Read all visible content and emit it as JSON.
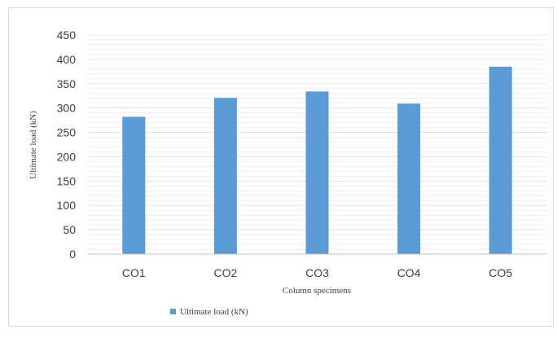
{
  "chart_data": {
    "type": "bar",
    "title": "",
    "xlabel": "Column specimens",
    "ylabel": "Ultimate load (kN)",
    "categories": [
      "CO1",
      "CO2",
      "CO3",
      "CO4",
      "CO5"
    ],
    "series": [
      {
        "name": "Ultimate load (kN)",
        "values": [
          282,
          321,
          334,
          309,
          385
        ]
      }
    ],
    "ylim": [
      0,
      450
    ],
    "yticks": [
      0,
      50,
      100,
      150,
      200,
      250,
      300,
      350,
      400,
      450
    ],
    "grid": true,
    "legend": "bottom-left",
    "colors": {
      "bar": "#5b9bd5",
      "grid": "#e3e3e3",
      "axis": "#bfbfbf",
      "text": "#404040"
    }
  }
}
